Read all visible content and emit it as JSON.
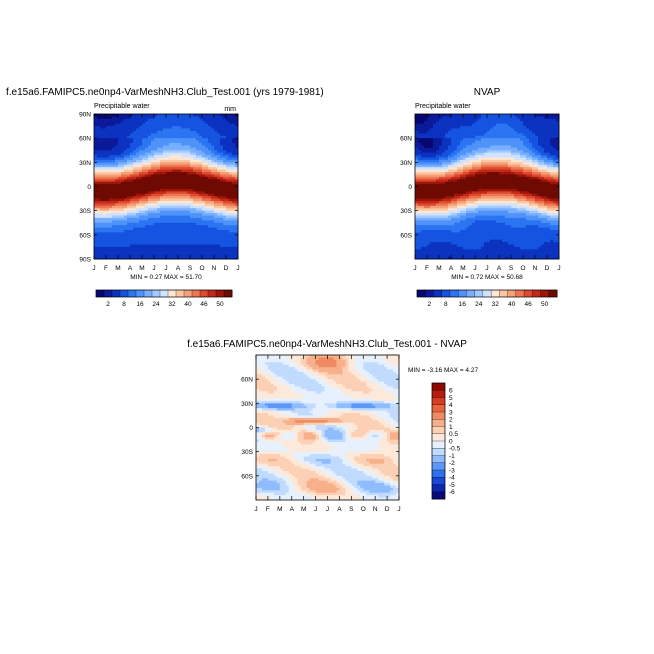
{
  "colors": {
    "pw_scale": [
      "#08076f",
      "#0a1a9b",
      "#0b33c0",
      "#1454e0",
      "#2b74f2",
      "#4f93fa",
      "#78afff",
      "#a4c9ff",
      "#cfe2ff",
      "#fde6d2",
      "#fbc6a2",
      "#f5a078",
      "#ee7552",
      "#de4a2e",
      "#c4281a",
      "#9c1509",
      "#6e0a02"
    ],
    "diff_scale": [
      "#0a0a80",
      "#0d28b0",
      "#1848d8",
      "#3070ee",
      "#5d98f8",
      "#8fbcfd",
      "#c0dbfe",
      "#e6f1fd",
      "#fde9da",
      "#fbd0b4",
      "#f7b08a",
      "#f08a62",
      "#e8633e",
      "#d63d22",
      "#b81c0c",
      "#8c0a02"
    ]
  },
  "chart_data": [
    {
      "type": "heatmap",
      "title": "f.e15a6.FAMIPC5.ne0np4-VarMeshNH3.Club_Test.001 (yrs 1979-1981)",
      "left_label": "Precipitable water",
      "units": "mm",
      "stats": "MIN =   0.27 MAX =  51.70",
      "x_ticks": [
        "J",
        "F",
        "M",
        "A",
        "M",
        "J",
        "J",
        "A",
        "S",
        "O",
        "N",
        "D",
        "J"
      ],
      "y_ticks": [
        "90N",
        "60N",
        "30N",
        "0",
        "30S",
        "60S",
        "90S"
      ],
      "y_tick_values": [
        90,
        60,
        30,
        0,
        -30,
        -60,
        -90
      ],
      "ylim": [
        -90,
        90
      ],
      "levels": [
        "2",
        "8",
        "16",
        "24",
        "32",
        "40",
        "46",
        "50"
      ],
      "min": 0.27,
      "max": 51.7
    },
    {
      "type": "heatmap",
      "title": "NVAP",
      "left_label": "Precipitable water",
      "stats": "MIN =   0.72 MAX =  50.68",
      "x_ticks": [
        "J",
        "F",
        "M",
        "A",
        "M",
        "J",
        "J",
        "A",
        "S",
        "O",
        "N",
        "D",
        "J"
      ],
      "y_ticks": [
        "60N",
        "30N",
        "0",
        "30S",
        "60S"
      ],
      "y_tick_values": [
        60,
        30,
        0,
        -30,
        -60
      ],
      "ylim": [
        -90,
        90
      ],
      "levels": [
        "2",
        "8",
        "16",
        "24",
        "32",
        "40",
        "46",
        "50"
      ],
      "min": 0.72,
      "max": 50.68
    },
    {
      "type": "heatmap",
      "title": "f.e15a6.FAMIPC5.ne0np4-VarMeshNH3.Club_Test.001 - NVAP",
      "stats": "MIN =  -3.16 MAX =   4.27",
      "x_ticks": [
        "J",
        "F",
        "M",
        "A",
        "M",
        "J",
        "J",
        "A",
        "S",
        "O",
        "N",
        "D",
        "J"
      ],
      "y_ticks": [
        "60N",
        "30N",
        "0",
        "30S",
        "60S"
      ],
      "y_tick_values": [
        60,
        30,
        0,
        -30,
        -60
      ],
      "ylim": [
        -90,
        90
      ],
      "levels": [
        "6",
        "5",
        "4",
        "3",
        "2",
        "1",
        "0.5",
        "0",
        "-0.5",
        "-1",
        "-2",
        "-3",
        "-4",
        "-5",
        "-6"
      ],
      "min": -3.16,
      "max": 4.27
    }
  ]
}
